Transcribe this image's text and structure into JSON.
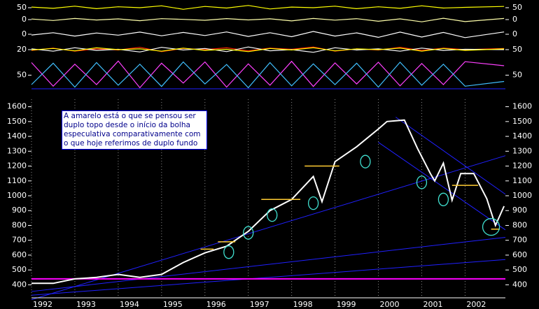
{
  "chart_data": [
    {
      "type": "line",
      "ylim": [
        30,
        70
      ],
      "yticks": [
        50
      ],
      "y2ticks": [
        50
      ],
      "x": [
        1992,
        1992.5,
        1993,
        1993.5,
        1994,
        1994.5,
        1995,
        1995.5,
        1996,
        1996.5,
        1997,
        1997.5,
        1998,
        1998.5,
        1999,
        1999.5,
        2000,
        2000.5,
        2001,
        2001.5,
        2002,
        2002.9
      ],
      "series": [
        {
          "color": "#ffff00",
          "values": [
            52,
            48,
            55,
            47,
            53,
            50,
            56,
            45,
            54,
            49,
            57,
            46,
            52,
            50,
            55,
            47,
            53,
            48,
            56,
            49,
            51,
            54
          ]
        }
      ]
    },
    {
      "type": "line",
      "ylim": [
        -50,
        50
      ],
      "yticks": [
        0
      ],
      "y2ticks": [
        0
      ],
      "x": [
        1992,
        1992.5,
        1993,
        1993.5,
        1994,
        1994.5,
        1995,
        1995.5,
        1996,
        1996.5,
        1997,
        1997.5,
        1998,
        1998.5,
        1999,
        1999.5,
        2000,
        2000.5,
        2001,
        2001.5,
        2002,
        2002.9
      ],
      "series": [
        {
          "color": "#ffffaa",
          "values": [
            5,
            -8,
            10,
            -4,
            6,
            -10,
            8,
            2,
            -6,
            9,
            -3,
            7,
            -12,
            10,
            -5,
            8,
            -15,
            6,
            -20,
            12,
            -18,
            10
          ]
        }
      ]
    },
    {
      "type": "line",
      "ylim": [
        -50,
        50
      ],
      "yticks": [
        0
      ],
      "y2ticks": [
        0
      ],
      "x": [
        1992,
        1992.5,
        1993,
        1993.5,
        1994,
        1994.5,
        1995,
        1995.5,
        1996,
        1996.5,
        1997,
        1997.5,
        1998,
        1998.5,
        1999,
        1999.5,
        2000,
        2000.5,
        2001,
        2001.5,
        2002,
        2002.9
      ],
      "series": [
        {
          "color": "#ffffff",
          "values": [
            -5,
            10,
            -12,
            8,
            -6,
            14,
            -10,
            12,
            -8,
            15,
            -14,
            10,
            -16,
            18,
            -12,
            9,
            -20,
            14,
            -18,
            12,
            -22,
            15
          ]
        }
      ]
    },
    {
      "type": "line",
      "ylim": [
        0,
        40
      ],
      "yticks": [
        20
      ],
      "y2lim": [
        30,
        70
      ],
      "y2ticks": [
        50
      ],
      "x": [
        1992,
        1992.5,
        1993,
        1993.5,
        1994,
        1994.5,
        1995,
        1995.5,
        1996,
        1996.5,
        1997,
        1997.5,
        1998,
        1998.5,
        1999,
        1999.5,
        2000,
        2000.5,
        2001,
        2001.5,
        2002,
        2002.9
      ],
      "series": [
        {
          "color": "#ff2000",
          "values": [
            18,
            24,
            16,
            22,
            19,
            26,
            15,
            23,
            20,
            25,
            17,
            24,
            21,
            27,
            16,
            22,
            19,
            26,
            18,
            24,
            20,
            23
          ]
        },
        {
          "color": "#ffffff",
          "axis": "y2",
          "values": [
            52,
            46,
            55,
            48,
            51,
            44,
            56,
            49,
            53,
            45,
            57,
            47,
            50,
            43,
            55,
            49,
            52,
            46,
            54,
            48,
            51,
            50
          ]
        },
        {
          "color": "#ffff00",
          "axis": "y2",
          "values": [
            49,
            53,
            47,
            55,
            50,
            52,
            46,
            54,
            48,
            51,
            45,
            53,
            49,
            55,
            47,
            52,
            50,
            54,
            46,
            53,
            48,
            52
          ]
        }
      ]
    },
    {
      "type": "line",
      "ylim": [
        0,
        100
      ],
      "yticks": [
        50
      ],
      "y2ticks": [
        50
      ],
      "x": [
        1992,
        1992.5,
        1993,
        1993.5,
        1994,
        1994.5,
        1995,
        1995.5,
        1996,
        1996.5,
        1997,
        1997.5,
        1998,
        1998.5,
        1999,
        1999.5,
        2000,
        2000.5,
        2001,
        2001.5,
        2002,
        2002.9
      ],
      "series": [
        {
          "color": "#ff40ff",
          "values": [
            90,
            15,
            85,
            20,
            95,
            10,
            88,
            25,
            92,
            12,
            86,
            18,
            94,
            14,
            89,
            22,
            91,
            16,
            87,
            20,
            93,
            80
          ]
        },
        {
          "color": "#40c0ff",
          "values": [
            20,
            88,
            12,
            90,
            18,
            85,
            14,
            92,
            22,
            84,
            10,
            90,
            16,
            86,
            20,
            88,
            12,
            91,
            18,
            85,
            15,
            30
          ]
        }
      ]
    },
    {
      "type": "line",
      "ylim": [
        350,
        1650
      ],
      "yticks": [
        400,
        500,
        600,
        700,
        800,
        900,
        1000,
        1100,
        1200,
        1300,
        1400,
        1500,
        1600
      ],
      "xlim": [
        1992,
        2002.93
      ],
      "xticks": [
        1992,
        1993,
        1994,
        1995,
        1996,
        1997,
        1998,
        1999,
        2000,
        2001,
        2002
      ],
      "x": [
        1992.0,
        1992.5,
        1993.0,
        1993.5,
        1994.0,
        1994.5,
        1995.0,
        1995.5,
        1996.0,
        1996.5,
        1997.0,
        1997.5,
        1998.0,
        1998.5,
        1998.7,
        1999.0,
        1999.5,
        2000.0,
        2000.2,
        2000.6,
        2000.9,
        2001.2,
        2001.3,
        2001.5,
        2001.7,
        2001.9,
        2002.2,
        2002.5,
        2002.7,
        2002.9
      ],
      "series": [
        {
          "color": "#ffffff",
          "values": [
            410,
            410,
            440,
            450,
            470,
            450,
            470,
            550,
            615,
            660,
            760,
            900,
            975,
            1130,
            960,
            1230,
            1330,
            1450,
            1500,
            1510,
            1320,
            1150,
            1100,
            1220,
            970,
            1150,
            1150,
            980,
            800,
            930
          ]
        }
      ],
      "trend_lines": [
        {
          "color": "#2020ff",
          "x": [
            1992,
            2002.93
          ],
          "y": [
            330,
            570
          ]
        },
        {
          "color": "#2020ff",
          "x": [
            1992,
            2002.93
          ],
          "y": [
            355,
            720
          ]
        },
        {
          "color": "#2020ff",
          "x": [
            1992,
            2002.93
          ],
          "y": [
            300,
            1270
          ]
        },
        {
          "color": "#2020ff",
          "x": [
            2000.4,
            2002.93
          ],
          "y": [
            1530,
            1010
          ]
        },
        {
          "color": "#2020ff",
          "x": [
            2000.0,
            2002.93
          ],
          "y": [
            1360,
            770
          ]
        },
        {
          "color": "#ff00ff",
          "x": [
            1992,
            2002.93
          ],
          "y": [
            440,
            440
          ]
        }
      ],
      "markers": [
        {
          "color": "#ffcc33",
          "x": [
            1995.9,
            1996.2
          ],
          "y": [
            640,
            640
          ]
        },
        {
          "color": "#ffcc33",
          "x": [
            1996.3,
            1996.7
          ],
          "y": [
            690,
            690
          ]
        },
        {
          "color": "#ffcc33",
          "x": [
            1997.3,
            1998.2
          ],
          "y": [
            975,
            975
          ]
        },
        {
          "color": "#ffcc33",
          "x": [
            1998.3,
            1999.1
          ],
          "y": [
            1200,
            1200
          ]
        },
        {
          "color": "#ffcc33",
          "x": [
            2001.7,
            2002.3
          ],
          "y": [
            1070,
            1070
          ]
        },
        {
          "color": "#ffcc33",
          "x": [
            2002.6,
            2002.8
          ],
          "y": [
            775,
            775
          ]
        }
      ],
      "circles": {
        "color": "#40e0d0",
        "x": [
          1996.55,
          1997.0,
          1997.55,
          1998.5,
          1999.7,
          2001.0,
          2001.5,
          2002.6
        ],
        "y": [
          620,
          750,
          870,
          950,
          1230,
          1090,
          975,
          790
        ]
      },
      "annotation": [
        "A  amarelo está o que se pensou ser",
        "duplo topo desde o início da bolha",
        "especulativa comparativamente com",
        "o que hoje referimos de duplo fundo"
      ]
    }
  ]
}
